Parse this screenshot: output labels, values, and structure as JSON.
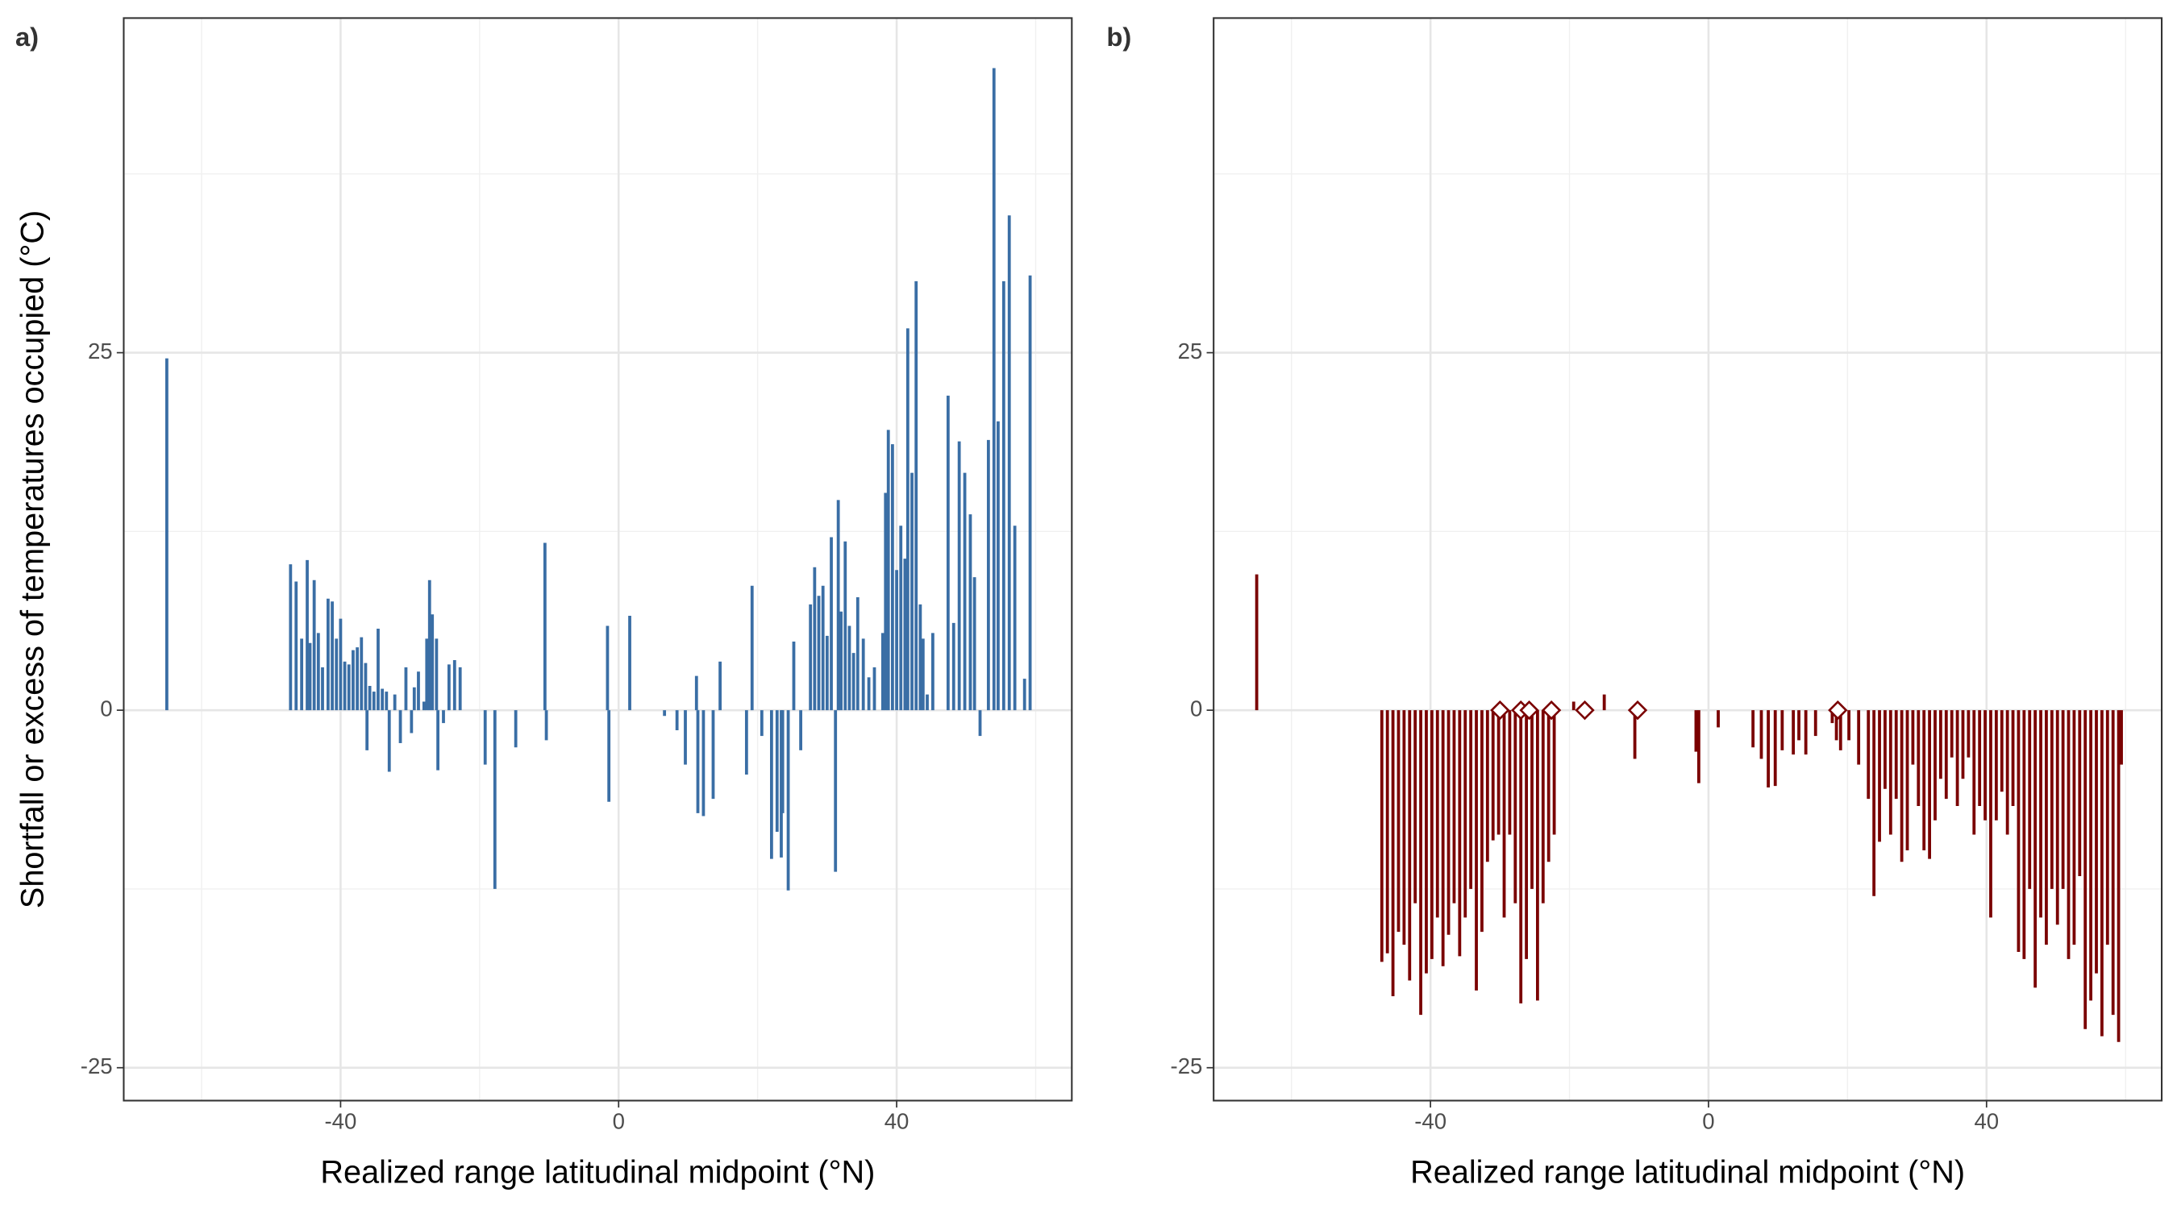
{
  "chart_data": [
    {
      "type": "bar",
      "panel_label": "a)",
      "x_label": "Realized range latitudinal midpoint (°N)",
      "y_label": "Shortfall or excess of temperatures occupied (°C)",
      "color": "#3a6ea5",
      "xlim": [
        -71.2,
        65.2
      ],
      "ylim": [
        -27.3,
        48.4
      ],
      "xticks": [
        -40,
        0,
        40
      ],
      "yticks": [
        -25,
        0,
        25
      ],
      "xminor": [
        -60,
        -20,
        20,
        60
      ],
      "yminor": [
        -12.5,
        12.5,
        37.5
      ],
      "grid": true,
      "x": [
        -65,
        -47.2,
        -46.4,
        -45.6,
        -44.8,
        -44.4,
        -43.8,
        -43.2,
        -42.6,
        -41.8,
        -41.2,
        -40.6,
        -40,
        -39.4,
        -38.8,
        -38.2,
        -37.6,
        -37,
        -36.4,
        -36.2,
        -35.8,
        -35.2,
        -34.6,
        -34,
        -33.4,
        -33,
        -32.2,
        -31.4,
        -30.6,
        -29.8,
        -29.4,
        -28.8,
        -28,
        -27.6,
        -27.2,
        -26.8,
        -26.2,
        -26,
        -25.2,
        -24.4,
        -23.6,
        -22.8,
        -19.2,
        -17.8,
        -14.8,
        -10.6,
        -10.4,
        -1.6,
        -1.4,
        1.6,
        6.6,
        8.4,
        9.6,
        11.2,
        11.4,
        12.2,
        13.6,
        14.6,
        18.4,
        19.2,
        20.6,
        22,
        22.8,
        23.4,
        23.6,
        24.4,
        25.2,
        26.2,
        27.6,
        28.2,
        28.8,
        29.4,
        30,
        30.6,
        31.2,
        31.6,
        32,
        32.6,
        33.2,
        33.8,
        34.4,
        35.2,
        36,
        36.8,
        38,
        38.4,
        38.8,
        39.4,
        40,
        40.6,
        41.2,
        41.6,
        42.2,
        42.8,
        43.4,
        43.8,
        44.4,
        45.2,
        47.4,
        48.2,
        49,
        49.8,
        50.6,
        51.2,
        52,
        53.2,
        54,
        54.6,
        55.4,
        56.2,
        57,
        58.4,
        59.2
      ],
      "values": [
        24.6,
        10.2,
        9.0,
        5.0,
        10.5,
        4.7,
        9.1,
        5.4,
        3.0,
        7.8,
        7.6,
        5.0,
        6.4,
        3.4,
        3.2,
        4.2,
        4.4,
        5.1,
        3.3,
        -2.8,
        1.7,
        1.3,
        5.7,
        1.5,
        1.3,
        -4.3,
        1.1,
        -2.3,
        3.0,
        -1.6,
        1.6,
        2.7,
        0.6,
        5.0,
        9.1,
        6.7,
        5.0,
        -4.2,
        -0.9,
        3.2,
        3.5,
        3.0,
        -3.8,
        -12.5,
        -2.6,
        11.7,
        -2.1,
        5.9,
        -6.4,
        6.6,
        -0.4,
        -1.4,
        -3.8,
        2.4,
        -7.2,
        -7.4,
        -6.2,
        3.4,
        -4.5,
        8.7,
        -1.8,
        -10.4,
        -8.5,
        -10.3,
        -7.2,
        -12.6,
        4.8,
        -2.8,
        7.4,
        10.0,
        8.0,
        8.7,
        5.2,
        12.1,
        -11.3,
        14.7,
        6.9,
        11.8,
        5.9,
        4.0,
        7.9,
        5.0,
        2.3,
        3.0,
        5.4,
        15.2,
        19.6,
        18.6,
        9.8,
        12.9,
        10.6,
        26.7,
        16.6,
        30.0,
        7.4,
        5.0,
        1.1,
        5.4,
        22.0,
        6.1,
        18.8,
        16.6,
        13.7,
        9.3,
        -1.8,
        18.9,
        44.9,
        20.2,
        30.0,
        34.6,
        12.9,
        2.2,
        30.4
      ]
    },
    {
      "type": "bar",
      "panel_label": "b)",
      "x_label": "Realized range latitudinal midpoint (°N)",
      "color": "#7a0000",
      "xlim": [
        -71.2,
        65.2
      ],
      "ylim": [
        -27.3,
        48.4
      ],
      "xticks": [
        -40,
        0,
        40
      ],
      "yticks": [
        -25,
        0,
        25
      ],
      "xminor": [
        -60,
        -20,
        20,
        60
      ],
      "yminor": [
        -12.5,
        12.5,
        37.5
      ],
      "grid": true,
      "x": [
        -65,
        -47,
        -46.2,
        -45.4,
        -44.6,
        -43.8,
        -43,
        -42.2,
        -41.4,
        -40.6,
        -39.8,
        -39,
        -38.2,
        -37.4,
        -36.6,
        -35.8,
        -35,
        -34.2,
        -33.4,
        -32.6,
        -31.8,
        -31,
        -30.2,
        -29.4,
        -28.6,
        -27.8,
        -27,
        -26.2,
        -25.4,
        -24.6,
        -23.8,
        -23,
        -22.2,
        -19.4,
        -15,
        -10.6,
        -1.8,
        -1.4,
        1.4,
        6.4,
        7.6,
        8.6,
        9.6,
        10.6,
        12.2,
        13,
        14,
        15.4,
        17.8,
        18.4,
        19,
        20.2,
        21.6,
        23,
        23.8,
        24.6,
        25.4,
        26.2,
        27,
        27.8,
        28.6,
        29.4,
        30.2,
        31,
        31.8,
        32.6,
        33.4,
        34.2,
        35,
        35.8,
        36.6,
        37.4,
        38.2,
        39,
        39.8,
        40.6,
        41.4,
        42.2,
        43,
        43.8,
        44.6,
        45.4,
        46.2,
        47,
        47.8,
        48.6,
        49.4,
        50.2,
        51,
        51.8,
        52.6,
        53.4,
        54.2,
        55,
        55.8,
        56.6,
        57.4,
        58.2,
        59,
        59.4
      ],
      "values": [
        9.5,
        -17.6,
        -17,
        -20,
        -15.5,
        -16.4,
        -18.9,
        -13.5,
        -21.3,
        -18.4,
        -17.4,
        -14.5,
        -17.9,
        -15.7,
        -13.5,
        -17.2,
        -14.5,
        -12.5,
        -19.6,
        -15.5,
        -10.6,
        -9.1,
        -8.7,
        -14.5,
        -8.7,
        -13.5,
        -20.5,
        -17.4,
        -12.5,
        -20.3,
        -13.5,
        -10.6,
        -8.7,
        0.6,
        1.1,
        -3.4,
        -2.9,
        -5.1,
        -1.2,
        -2.6,
        -3.4,
        -5.4,
        -5.3,
        -2.8,
        -3.1,
        -2.1,
        -3.1,
        -1.8,
        -0.9,
        -2.1,
        -2.8,
        -2.1,
        -3.8,
        -6.2,
        -13,
        -9.2,
        -5.5,
        -8.7,
        -6.2,
        -10.6,
        -9.8,
        -3.8,
        -6.7,
        -9.8,
        -10.4,
        -7.7,
        -4.8,
        -6.2,
        -3.3,
        -6.7,
        -4.8,
        -3.3,
        -8.7,
        -6.7,
        -7.7,
        -14.5,
        -7.7,
        -5.7,
        -8.7,
        -6.7,
        -16.9,
        -17.4,
        -12.5,
        -19.4,
        -14.5,
        -16.4,
        -12.5,
        -15,
        -12.5,
        -17.4,
        -16.4,
        -11.6,
        -22.3,
        -20.3,
        -18.4,
        -22.8,
        -16.4,
        -21.3,
        -23.2,
        -3.8
      ],
      "points": {
        "x": [
          -30,
          -27,
          -25.8,
          -22.6,
          -17.8,
          -10.2,
          18.6
        ],
        "values": [
          0,
          0,
          0,
          0,
          0,
          0,
          0
        ]
      }
    }
  ]
}
